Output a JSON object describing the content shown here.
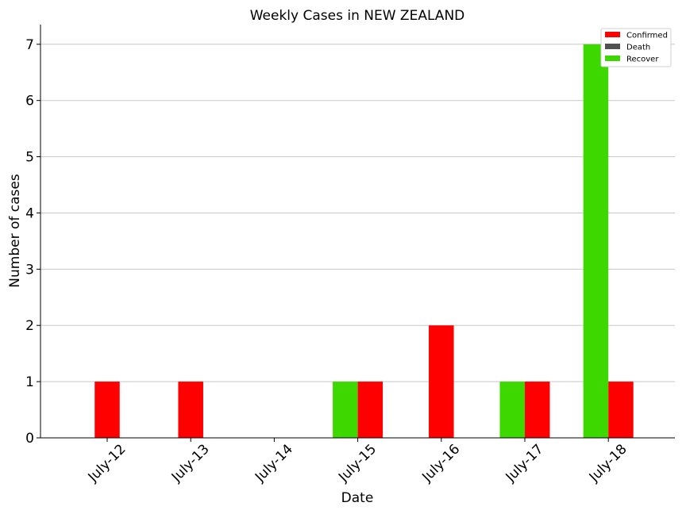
{
  "chart_data": {
    "type": "bar",
    "title": "Weekly Cases in NEW ZEALAND",
    "xlabel": "Date",
    "ylabel": "Number of cases",
    "categories": [
      "July-12",
      "July-13",
      "July-14",
      "July-15",
      "July-16",
      "July-17",
      "July-18"
    ],
    "ylim": [
      0,
      7.35
    ],
    "yticks": [
      0,
      1,
      2,
      3,
      4,
      5,
      6,
      7
    ],
    "grid": "horizontal",
    "legend_position": "top-right",
    "series": [
      {
        "name": "Confirmed",
        "color": "#ff0000",
        "values": [
          1,
          1,
          0,
          1,
          2,
          1,
          1
        ]
      },
      {
        "name": "Death",
        "color": "#505050",
        "values": [
          0,
          0,
          0,
          0,
          0,
          0,
          0
        ]
      },
      {
        "name": "Recover",
        "color": "#3dd800",
        "values": [
          0,
          0,
          0,
          1,
          0,
          1,
          7
        ]
      }
    ]
  }
}
